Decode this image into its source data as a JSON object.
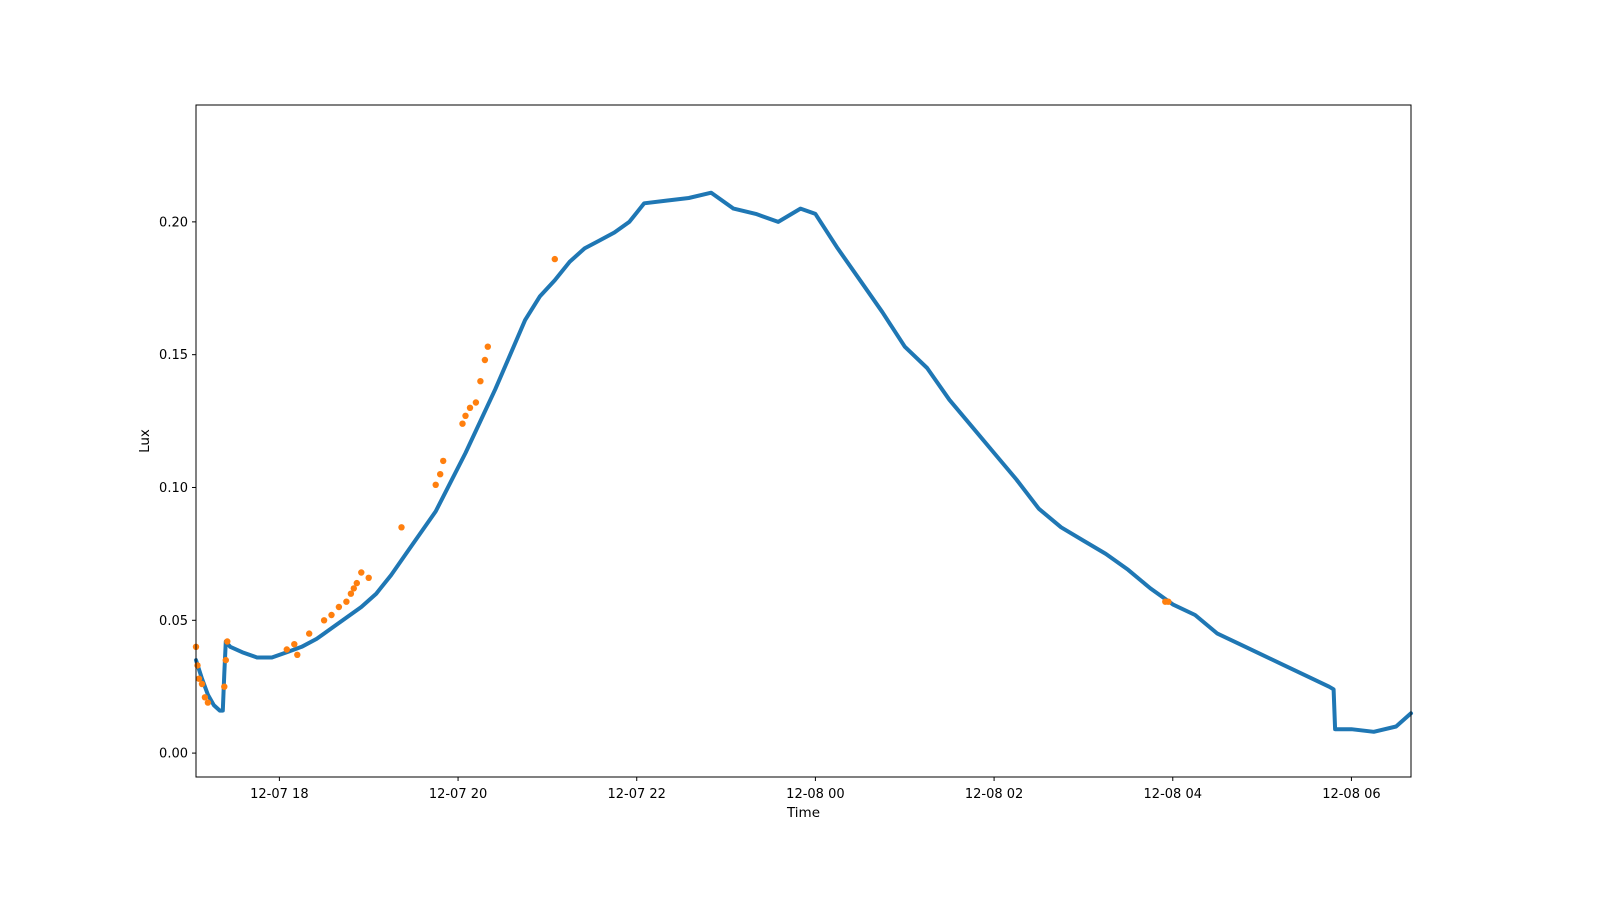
{
  "chart_data": {
    "type": "line",
    "title": "",
    "xlabel": "Time",
    "ylabel": "Lux",
    "grid": false,
    "legend": "none",
    "x_tick_labels": [
      "12-07 18",
      "12-07 20",
      "12-07 22",
      "12-08 00",
      "12-08 02",
      "12-08 04",
      "12-08 06"
    ],
    "x_ticks": [
      "2023-12-07 18:00",
      "2023-12-07 20:00",
      "2023-12-07 22:00",
      "2023-12-08 00:00",
      "2023-12-08 02:00",
      "2023-12-08 04:00",
      "2023-12-08 06:00"
    ],
    "xlim": [
      "2023-12-07 17:04",
      "2023-12-08 06:40"
    ],
    "y_tick_labels": [
      "0.00",
      "0.05",
      "0.10",
      "0.15",
      "0.20"
    ],
    "y_ticks": [
      0.0,
      0.05,
      0.1,
      0.15,
      0.2
    ],
    "ylim": [
      -0.009,
      0.244
    ],
    "series": [
      {
        "style": "line",
        "color": "#1f77b4",
        "points": [
          [
            "2023-12-07 17:04",
            0.035
          ],
          [
            "2023-12-07 17:08",
            0.028
          ],
          [
            "2023-12-07 17:12",
            0.022
          ],
          [
            "2023-12-07 17:16",
            0.018
          ],
          [
            "2023-12-07 17:20",
            0.016
          ],
          [
            "2023-12-07 17:22",
            0.016
          ],
          [
            "2023-12-07 17:23",
            0.03
          ],
          [
            "2023-12-07 17:24",
            0.042
          ],
          [
            "2023-12-07 17:27",
            0.04
          ],
          [
            "2023-12-07 17:35",
            0.038
          ],
          [
            "2023-12-07 17:45",
            0.036
          ],
          [
            "2023-12-07 17:55",
            0.036
          ],
          [
            "2023-12-07 18:05",
            0.038
          ],
          [
            "2023-12-07 18:15",
            0.04
          ],
          [
            "2023-12-07 18:25",
            0.043
          ],
          [
            "2023-12-07 18:35",
            0.047
          ],
          [
            "2023-12-07 18:45",
            0.051
          ],
          [
            "2023-12-07 18:55",
            0.055
          ],
          [
            "2023-12-07 19:05",
            0.06
          ],
          [
            "2023-12-07 19:15",
            0.067
          ],
          [
            "2023-12-07 19:25",
            0.075
          ],
          [
            "2023-12-07 19:35",
            0.083
          ],
          [
            "2023-12-07 19:45",
            0.091
          ],
          [
            "2023-12-07 19:55",
            0.102
          ],
          [
            "2023-12-07 20:05",
            0.113
          ],
          [
            "2023-12-07 20:15",
            0.125
          ],
          [
            "2023-12-07 20:25",
            0.137
          ],
          [
            "2023-12-07 20:35",
            0.15
          ],
          [
            "2023-12-07 20:45",
            0.163
          ],
          [
            "2023-12-07 20:55",
            0.172
          ],
          [
            "2023-12-07 21:05",
            0.178
          ],
          [
            "2023-12-07 21:15",
            0.185
          ],
          [
            "2023-12-07 21:25",
            0.19
          ],
          [
            "2023-12-07 21:35",
            0.193
          ],
          [
            "2023-12-07 21:45",
            0.196
          ],
          [
            "2023-12-07 21:55",
            0.2
          ],
          [
            "2023-12-07 22:05",
            0.207
          ],
          [
            "2023-12-07 22:20",
            0.208
          ],
          [
            "2023-12-07 22:35",
            0.209
          ],
          [
            "2023-12-07 22:50",
            0.211
          ],
          [
            "2023-12-07 23:05",
            0.205
          ],
          [
            "2023-12-07 23:20",
            0.203
          ],
          [
            "2023-12-07 23:35",
            0.2
          ],
          [
            "2023-12-07 23:50",
            0.205
          ],
          [
            "2023-12-08 00:00",
            0.203
          ],
          [
            "2023-12-08 00:15",
            0.19
          ],
          [
            "2023-12-08 00:30",
            0.178
          ],
          [
            "2023-12-08 00:45",
            0.166
          ],
          [
            "2023-12-08 01:00",
            0.153
          ],
          [
            "2023-12-08 01:15",
            0.145
          ],
          [
            "2023-12-08 01:30",
            0.133
          ],
          [
            "2023-12-08 01:45",
            0.123
          ],
          [
            "2023-12-08 02:00",
            0.113
          ],
          [
            "2023-12-08 02:15",
            0.103
          ],
          [
            "2023-12-08 02:30",
            0.092
          ],
          [
            "2023-12-08 02:45",
            0.085
          ],
          [
            "2023-12-08 03:00",
            0.08
          ],
          [
            "2023-12-08 03:15",
            0.075
          ],
          [
            "2023-12-08 03:30",
            0.069
          ],
          [
            "2023-12-08 03:45",
            0.062
          ],
          [
            "2023-12-08 04:00",
            0.056
          ],
          [
            "2023-12-08 04:15",
            0.052
          ],
          [
            "2023-12-08 04:30",
            0.045
          ],
          [
            "2023-12-08 04:45",
            0.041
          ],
          [
            "2023-12-08 05:00",
            0.037
          ],
          [
            "2023-12-08 05:15",
            0.033
          ],
          [
            "2023-12-08 05:30",
            0.029
          ],
          [
            "2023-12-08 05:45",
            0.025
          ],
          [
            "2023-12-08 05:48",
            0.024
          ],
          [
            "2023-12-08 05:49",
            0.009
          ],
          [
            "2023-12-08 06:00",
            0.009
          ],
          [
            "2023-12-08 06:15",
            0.008
          ],
          [
            "2023-12-08 06:30",
            0.01
          ],
          [
            "2023-12-08 06:40",
            0.015
          ]
        ]
      },
      {
        "style": "markers",
        "color": "#ff7f0e",
        "points": [
          [
            "2023-12-07 17:04",
            0.04
          ],
          [
            "2023-12-07 17:05",
            0.033
          ],
          [
            "2023-12-07 17:06",
            0.028
          ],
          [
            "2023-12-07 17:08",
            0.026
          ],
          [
            "2023-12-07 17:10",
            0.021
          ],
          [
            "2023-12-07 17:12",
            0.019
          ],
          [
            "2023-12-07 17:23",
            0.025
          ],
          [
            "2023-12-07 17:24",
            0.035
          ],
          [
            "2023-12-07 17:25",
            0.042
          ],
          [
            "2023-12-07 18:05",
            0.039
          ],
          [
            "2023-12-07 18:10",
            0.041
          ],
          [
            "2023-12-07 18:12",
            0.037
          ],
          [
            "2023-12-07 18:20",
            0.045
          ],
          [
            "2023-12-07 18:30",
            0.05
          ],
          [
            "2023-12-07 18:35",
            0.052
          ],
          [
            "2023-12-07 18:40",
            0.055
          ],
          [
            "2023-12-07 18:45",
            0.057
          ],
          [
            "2023-12-07 18:48",
            0.06
          ],
          [
            "2023-12-07 18:50",
            0.062
          ],
          [
            "2023-12-07 18:52",
            0.064
          ],
          [
            "2023-12-07 18:55",
            0.068
          ],
          [
            "2023-12-07 19:00",
            0.066
          ],
          [
            "2023-12-07 19:22",
            0.085
          ],
          [
            "2023-12-07 19:45",
            0.101
          ],
          [
            "2023-12-07 19:48",
            0.105
          ],
          [
            "2023-12-07 19:50",
            0.11
          ],
          [
            "2023-12-07 20:03",
            0.124
          ],
          [
            "2023-12-07 20:05",
            0.127
          ],
          [
            "2023-12-07 20:08",
            0.13
          ],
          [
            "2023-12-07 20:12",
            0.132
          ],
          [
            "2023-12-07 20:15",
            0.14
          ],
          [
            "2023-12-07 20:18",
            0.148
          ],
          [
            "2023-12-07 20:20",
            0.153
          ],
          [
            "2023-12-07 21:05",
            0.186
          ],
          [
            "2023-12-08 03:55",
            0.057
          ],
          [
            "2023-12-08 03:57",
            0.057
          ]
        ]
      }
    ]
  }
}
